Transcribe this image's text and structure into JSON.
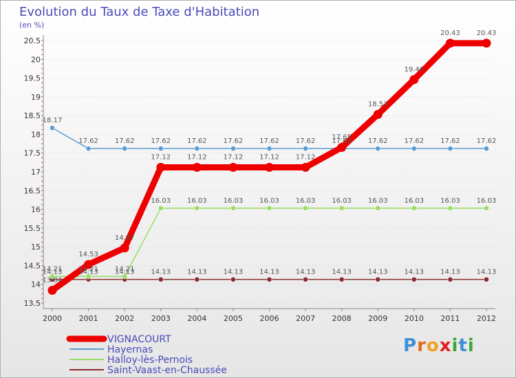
{
  "title": "Evolution du Taux de Taxe d'Habitation",
  "unit": "(en %)",
  "colors": {
    "title": "#4a4ab8",
    "axis": "#888888",
    "grid": "#cccccc",
    "tick_mark": "#e02020"
  },
  "logo": {
    "text": "Proxiti",
    "letters": [
      "P",
      "r",
      "o",
      "x",
      "i",
      "t",
      "i"
    ],
    "colors": [
      "#3d8fd6",
      "#e06a1a",
      "#f0a020",
      "#e02020",
      "#3aa83a",
      "#3d8fd6",
      "#3aa83a"
    ]
  },
  "chart_data": {
    "type": "line",
    "title": "Evolution du Taux de Taxe d'Habitation",
    "ylabel": "(en %)",
    "xlabel": "",
    "ylim": [
      13.5,
      20.5
    ],
    "yticks": [
      "13.5",
      "14",
      "14.5",
      "15",
      "15.5",
      "16",
      "16.5",
      "17",
      "17.5",
      "18",
      "18.5",
      "19",
      "19.5",
      "20",
      "20.5"
    ],
    "categories": [
      "2000",
      "2001",
      "2002",
      "2003",
      "2004",
      "2005",
      "2006",
      "2007",
      "2008",
      "2009",
      "2010",
      "2011",
      "2012"
    ],
    "series": [
      {
        "name": "VIGNACOURT",
        "color": "#ee0000",
        "values": [
          13.84,
          14.53,
          14.97,
          17.12,
          17.12,
          17.12,
          17.12,
          17.12,
          17.65,
          18.53,
          19.46,
          20.43,
          20.43
        ],
        "labels": [
          "13.84",
          "14.53",
          "14.97",
          "17.12",
          "17.12",
          "17.12",
          "17.12",
          "17.12",
          "17.65",
          "18.53",
          "19.46",
          "20.43",
          "20.43"
        ]
      },
      {
        "name": "Hayernas",
        "color": "#5b9bd5",
        "values": [
          18.17,
          17.62,
          17.62,
          17.62,
          17.62,
          17.62,
          17.62,
          17.62,
          17.62,
          17.62,
          17.62,
          17.62,
          17.62
        ],
        "labels": [
          "18.17",
          "17.62",
          "17.62",
          "17.62",
          "17.62",
          "17.62",
          "17.62",
          "17.62",
          "17.62",
          "17.62",
          "17.62",
          "17.62",
          "17.62"
        ]
      },
      {
        "name": "Halloy-lès-Pernois",
        "color": "#99dd66",
        "values": [
          14.21,
          14.21,
          14.21,
          16.03,
          16.03,
          16.03,
          16.03,
          16.03,
          16.03,
          16.03,
          16.03,
          16.03,
          16.03
        ],
        "labels": [
          "14.21",
          "14.21",
          "14.21",
          "16.03",
          "16.03",
          "16.03",
          "16.03",
          "16.03",
          "16.03",
          "16.03",
          "16.03",
          "16.03",
          "16.03"
        ]
      },
      {
        "name": "Saint-Vaast-en-Chaussée",
        "color": "#8b2a2a",
        "values": [
          14.13,
          14.13,
          14.13,
          14.13,
          14.13,
          14.13,
          14.13,
          14.13,
          14.13,
          14.13,
          14.13,
          14.13,
          14.13
        ],
        "labels": [
          "14.13",
          "14.13",
          "14.13",
          "14.13",
          "14.13",
          "14.13",
          "14.13",
          "14.13",
          "14.13",
          "14.13",
          "14.13",
          "14.13",
          "14.13"
        ]
      }
    ]
  }
}
